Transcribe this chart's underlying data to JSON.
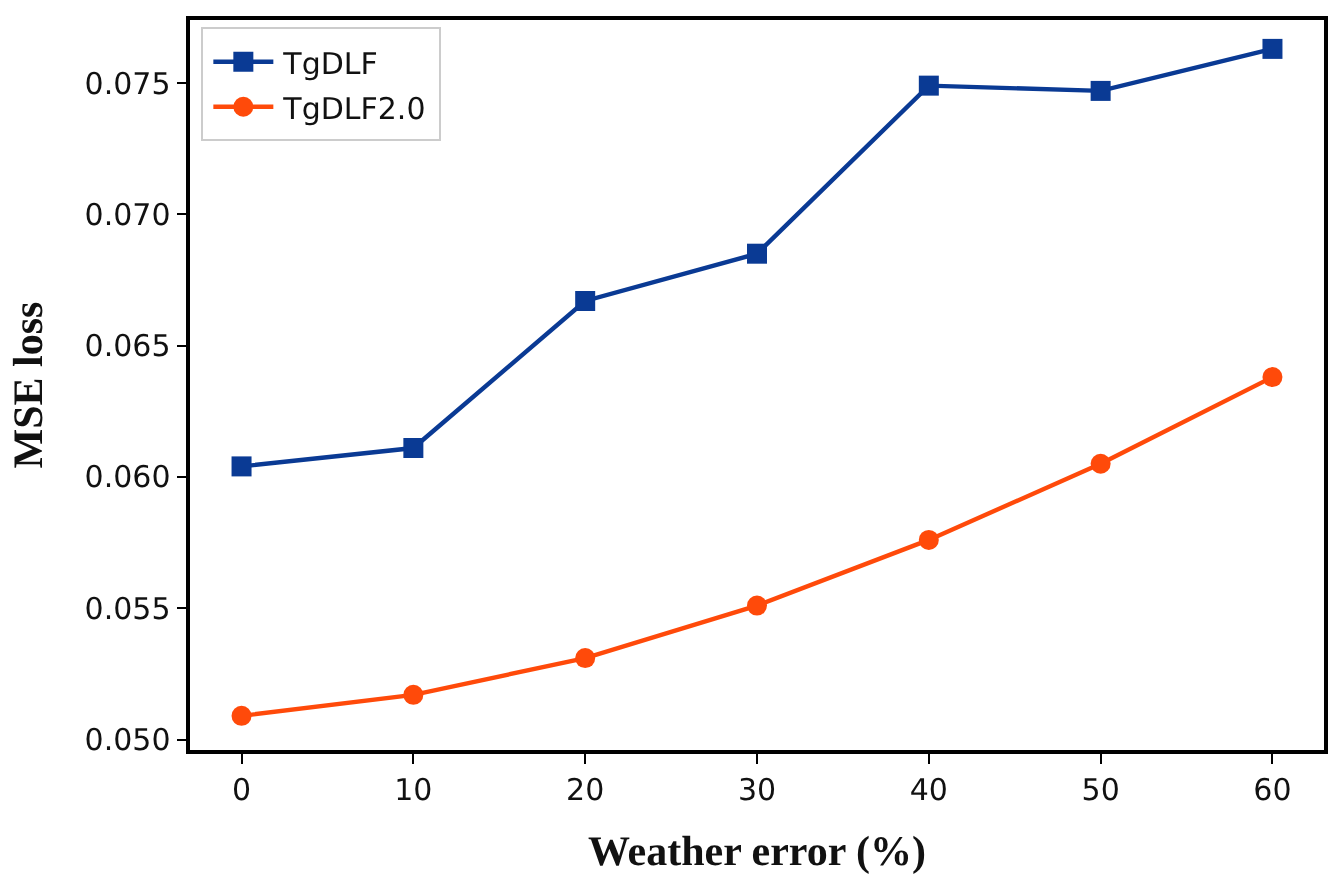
{
  "chart_data": {
    "type": "line",
    "xlabel": "Weather error (%)",
    "ylabel": "MSE loss",
    "x": [
      0,
      10,
      20,
      30,
      40,
      50,
      60
    ],
    "series": [
      {
        "name": "TgDLF",
        "color": "#0a3a94",
        "values": [
          0.0604,
          0.0611,
          0.0667,
          0.0685,
          0.0749,
          0.0747,
          0.0763
        ],
        "marker": "square"
      },
      {
        "name": "TgDLF2.0",
        "color": "#ff4a0a",
        "values": [
          0.0509,
          0.0517,
          0.0531,
          0.0551,
          0.0576,
          0.0605,
          0.0638
        ],
        "marker": "circle"
      }
    ],
    "xlim": [
      -3,
      63
    ],
    "xticks": [
      0,
      10,
      20,
      30,
      40,
      50,
      60
    ],
    "ylim": [
      0.0496,
      0.0774
    ],
    "yticks": [
      {
        "value": 0.05,
        "label": "0.050"
      },
      {
        "value": 0.055,
        "label": "0.055"
      },
      {
        "value": 0.06,
        "label": "0.060"
      },
      {
        "value": 0.065,
        "label": "0.065"
      },
      {
        "value": 0.07,
        "label": "0.070"
      },
      {
        "value": 0.075,
        "label": "0.075"
      }
    ],
    "legend": "top left",
    "line_style": "solid"
  }
}
